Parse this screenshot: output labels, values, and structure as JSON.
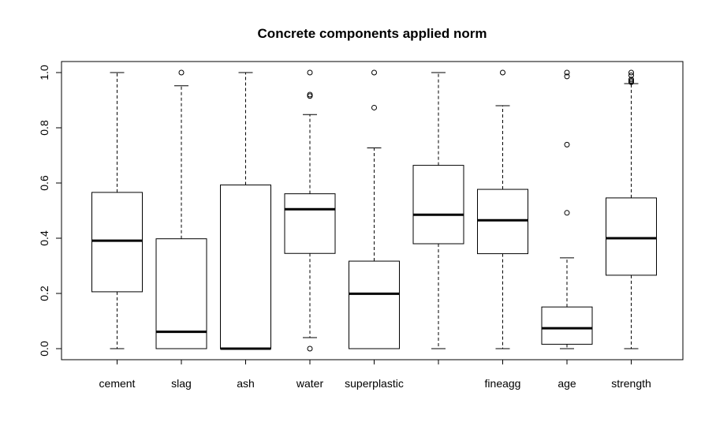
{
  "chart_data": {
    "type": "boxplot",
    "title": "Concrete components applied norm",
    "xlabel": "",
    "ylabel": "",
    "ylim": [
      0,
      1
    ],
    "yticks": [
      "0.0",
      "0.2",
      "0.4",
      "0.6",
      "0.8",
      "1.0"
    ],
    "grid": false,
    "legend": "none",
    "categories": [
      "cement",
      "slag",
      "ash",
      "water",
      "superplastic",
      "",
      "fineagg",
      "age",
      "strength"
    ],
    "boxes": [
      {
        "label": "cement",
        "min": 0.0,
        "q1": 0.206,
        "median": 0.391,
        "q3": 0.566,
        "max": 1.0,
        "outliers": []
      },
      {
        "label": "slag",
        "min": 0.0,
        "q1": 0.0,
        "median": 0.061,
        "q3": 0.398,
        "max": 0.952,
        "outliers": [
          1.0
        ]
      },
      {
        "label": "ash",
        "min": 0.0,
        "q1": 0.0,
        "median": 0.0,
        "q3": 0.593,
        "max": 1.0,
        "outliers": []
      },
      {
        "label": "water",
        "min": 0.04,
        "q1": 0.345,
        "median": 0.505,
        "q3": 0.561,
        "max": 0.848,
        "outliers": [
          0.0,
          0.92,
          0.915,
          1.0
        ]
      },
      {
        "label": "superplastic",
        "min": 0.0,
        "q1": 0.0,
        "median": 0.199,
        "q3": 0.317,
        "max": 0.727,
        "outliers": [
          0.873,
          1.0
        ]
      },
      {
        "label": "",
        "min": 0.0,
        "q1": 0.38,
        "median": 0.485,
        "q3": 0.664,
        "max": 1.0,
        "outliers": []
      },
      {
        "label": "fineagg",
        "min": 0.0,
        "q1": 0.344,
        "median": 0.465,
        "q3": 0.577,
        "max": 0.88,
        "outliers": [
          1.0
        ]
      },
      {
        "label": "age",
        "min": 0.0,
        "q1": 0.016,
        "median": 0.074,
        "q3": 0.151,
        "max": 0.329,
        "outliers": [
          0.492,
          0.739,
          0.986,
          1.0
        ]
      },
      {
        "label": "strength",
        "min": 0.0,
        "q1": 0.266,
        "median": 0.4,
        "q3": 0.546,
        "max": 0.96,
        "outliers": [
          0.965,
          0.97,
          0.975,
          0.99,
          1.0
        ]
      }
    ]
  }
}
